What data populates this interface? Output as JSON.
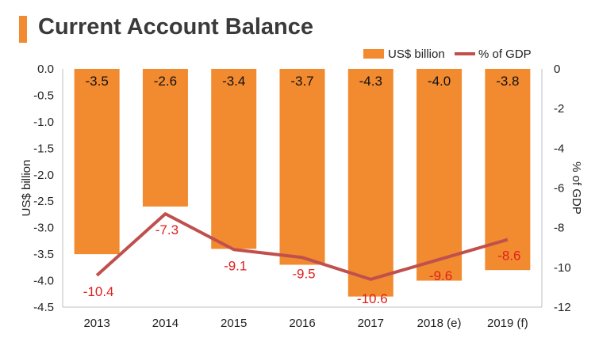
{
  "title": "Current Account Balance",
  "colors": {
    "accent": "#f28a30",
    "bar": "#f28a30",
    "line": "#c0504d",
    "line_label": "#e0201e",
    "axis": "#bfbfbf"
  },
  "chart_data": {
    "type": "bar",
    "categories": [
      "2013",
      "2014",
      "2015",
      "2016",
      "2017",
      "2018 (e)",
      "2019 (f)"
    ],
    "series": [
      {
        "name": "US$ billion",
        "type": "bar",
        "axis": "left",
        "values": [
          -3.5,
          -2.6,
          -3.4,
          -3.7,
          -4.3,
          -4.0,
          -3.8
        ],
        "labels": [
          "-3.5",
          "-2.6",
          "-3.4",
          "-3.7",
          "-4.3",
          "-4.0",
          "-3.8"
        ]
      },
      {
        "name": "% of GDP",
        "type": "line",
        "axis": "right",
        "values": [
          -10.4,
          -7.3,
          -9.1,
          -9.5,
          -10.6,
          -9.6,
          -8.6
        ],
        "labels": [
          "-10.4",
          "-7.3",
          "-9.1",
          "-9.5",
          "-10.6",
          "-9.6",
          "-8.6"
        ]
      }
    ],
    "ylabel": "US$ billion",
    "ylim": [
      -4.5,
      0
    ],
    "yticks": [
      "0.0",
      "-0.5",
      "-1.0",
      "-1.5",
      "-2.0",
      "-2.5",
      "-3.0",
      "-3.5",
      "-4.0",
      "-4.5"
    ],
    "y2label": "% of GDP",
    "y2lim": [
      -12,
      0
    ],
    "y2ticks": [
      "0",
      "-2",
      "-4",
      "-6",
      "-8",
      "-10",
      "-12"
    ],
    "legend_position": "top-right",
    "grid": false
  }
}
